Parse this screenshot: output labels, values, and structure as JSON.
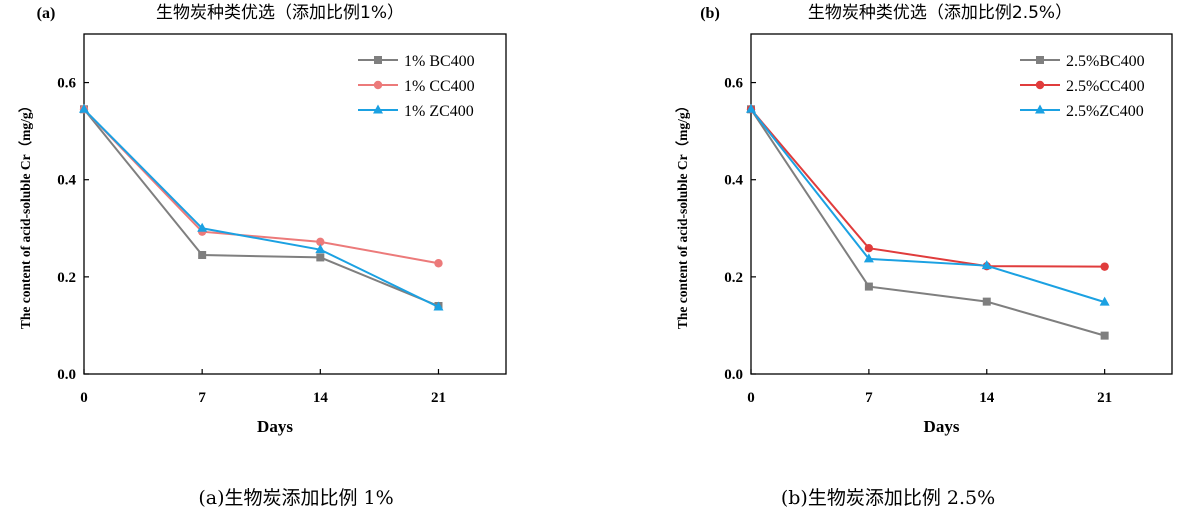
{
  "colors": {
    "gray": "#7f7f7f",
    "red_a": "#ec7a7a",
    "red_b": "#e03c3c",
    "blue": "#1ba1e2"
  },
  "chart_data": [
    {
      "type": "line",
      "tag": "(a)",
      "title": "生物炭种类优选（添加比例1%）",
      "caption": "(a)生物炭添加比例 1%",
      "xlabel": "Days",
      "ylabel": "The content of acid-soluble Cr（mg/g）",
      "x": [
        0,
        7,
        14,
        21
      ],
      "xlim": [
        0,
        25
      ],
      "ylim": [
        0,
        0.7
      ],
      "xticks": [
        0,
        7,
        14,
        21
      ],
      "yticks": [
        "0.0",
        "0.2",
        "0.4",
        "0.6"
      ],
      "legend_position": "top-right",
      "series": [
        {
          "name": "1% BC400",
          "marker": "square",
          "color": "#7f7f7f",
          "values": [
            0.545,
            0.245,
            0.24,
            0.14
          ]
        },
        {
          "name": "1% CC400",
          "marker": "circle",
          "color": "#ec7a7a",
          "values": [
            0.545,
            0.293,
            0.272,
            0.228
          ]
        },
        {
          "name": "1% ZC400",
          "marker": "triangle",
          "color": "#1ba1e2",
          "values": [
            0.545,
            0.3,
            0.256,
            0.138
          ]
        }
      ]
    },
    {
      "type": "line",
      "tag": "(b)",
      "title": "生物炭种类优选（添加比例2.5%）",
      "caption": "(b)生物炭添加比例 2.5%",
      "xlabel": "Days",
      "ylabel": "The content of acid-soluble Cr（mg/g）",
      "x": [
        0,
        7,
        14,
        21
      ],
      "xlim": [
        0,
        25
      ],
      "ylim": [
        0,
        0.7
      ],
      "xticks": [
        0,
        7,
        14,
        21
      ],
      "yticks": [
        "0.0",
        "0.2",
        "0.4",
        "0.6"
      ],
      "legend_position": "top-right",
      "series": [
        {
          "name": "2.5%BC400",
          "marker": "square",
          "color": "#7f7f7f",
          "values": [
            0.545,
            0.18,
            0.149,
            0.079
          ]
        },
        {
          "name": "2.5%CC400",
          "marker": "circle",
          "color": "#e03c3c",
          "values": [
            0.545,
            0.259,
            0.222,
            0.221
          ]
        },
        {
          "name": "2.5%ZC400",
          "marker": "triangle",
          "color": "#1ba1e2",
          "values": [
            0.545,
            0.237,
            0.223,
            0.148
          ]
        }
      ]
    }
  ]
}
